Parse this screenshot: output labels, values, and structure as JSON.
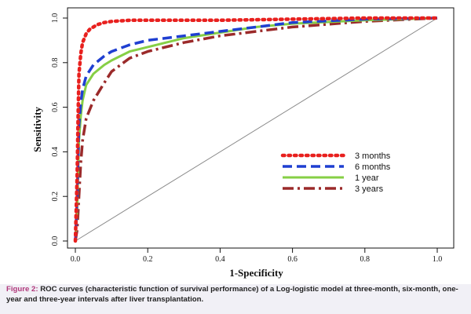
{
  "chart_data": {
    "type": "line",
    "xlabel": "1-Specificity",
    "ylabel": "Sensitivity",
    "xlim": [
      0,
      1
    ],
    "ylim": [
      0,
      1
    ],
    "x_ticks": [
      "0.0",
      "0.2",
      "0.4",
      "0.6",
      "0.8",
      "1.0"
    ],
    "y_ticks": [
      "0.0",
      "0.2",
      "0.4",
      "0.6",
      "0.8",
      "1.0"
    ],
    "grid": false,
    "legend_position": "lower-right",
    "reference_line": {
      "x": [
        0,
        1
      ],
      "y": [
        0,
        1
      ],
      "color": "#888888"
    },
    "series": [
      {
        "name": "3 months",
        "color": "#e8201e",
        "style": "dotted",
        "x": [
          0.0,
          0.005,
          0.008,
          0.01,
          0.015,
          0.02,
          0.03,
          0.04,
          0.06,
          0.08,
          0.1,
          0.15,
          0.2,
          0.4,
          0.6,
          0.8,
          1.0
        ],
        "y": [
          0.0,
          0.3,
          0.6,
          0.75,
          0.84,
          0.89,
          0.93,
          0.95,
          0.97,
          0.98,
          0.985,
          0.99,
          0.99,
          0.99,
          0.995,
          1.0,
          1.0
        ]
      },
      {
        "name": "6 months",
        "color": "#1f3fd1",
        "style": "dashed",
        "x": [
          0.0,
          0.005,
          0.01,
          0.015,
          0.02,
          0.03,
          0.05,
          0.08,
          0.1,
          0.15,
          0.2,
          0.3,
          0.4,
          0.5,
          0.6,
          0.8,
          1.0
        ],
        "y": [
          0.0,
          0.2,
          0.52,
          0.62,
          0.68,
          0.74,
          0.79,
          0.83,
          0.85,
          0.88,
          0.9,
          0.92,
          0.94,
          0.96,
          0.98,
          0.995,
          1.0
        ]
      },
      {
        "name": "1 year",
        "color": "#86cf45",
        "style": "solid",
        "x": [
          0.0,
          0.005,
          0.01,
          0.015,
          0.02,
          0.03,
          0.05,
          0.08,
          0.1,
          0.15,
          0.2,
          0.3,
          0.4,
          0.5,
          0.6,
          0.8,
          1.0
        ],
        "y": [
          0.0,
          0.15,
          0.45,
          0.56,
          0.63,
          0.7,
          0.75,
          0.79,
          0.81,
          0.85,
          0.87,
          0.91,
          0.935,
          0.96,
          0.975,
          0.99,
          1.0
        ]
      },
      {
        "name": "3 years",
        "color": "#9b2a2a",
        "style": "dashdot",
        "x": [
          0.0,
          0.005,
          0.01,
          0.015,
          0.02,
          0.03,
          0.05,
          0.08,
          0.1,
          0.15,
          0.2,
          0.3,
          0.4,
          0.5,
          0.6,
          0.8,
          1.0
        ],
        "y": [
          0.0,
          0.05,
          0.2,
          0.35,
          0.45,
          0.55,
          0.63,
          0.71,
          0.76,
          0.82,
          0.85,
          0.89,
          0.92,
          0.94,
          0.96,
          0.985,
          1.0
        ]
      }
    ]
  },
  "caption": {
    "label": "Figure 2:",
    "text": "ROC curves (characteristic function of survival performance) of a Log-logistic model at three-month, six-month, one-year and three-year intervals after liver transplantation."
  }
}
